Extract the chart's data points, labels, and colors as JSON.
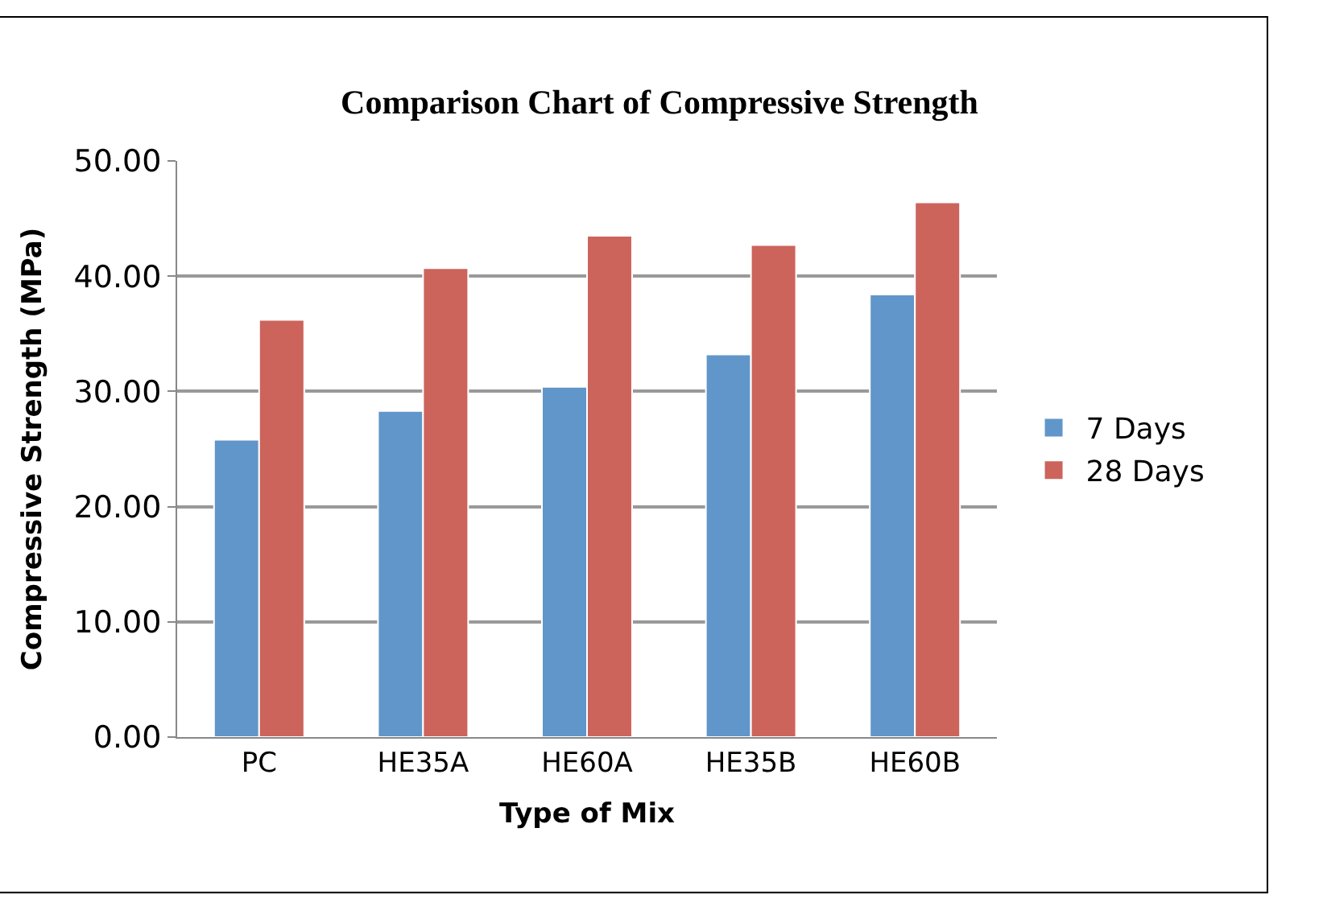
{
  "chart_data": {
    "type": "bar",
    "title": "Comparison Chart of Compressive Strength",
    "xlabel": "Type of Mix",
    "ylabel": "Compressive Strength (MPa)",
    "categories": [
      "PC",
      "HE35A",
      "HE60A",
      "HE35B",
      "HE60B"
    ],
    "series": [
      {
        "name": "7 Days",
        "color": "#6096c9",
        "values": [
          25.8,
          28.3,
          30.4,
          33.2,
          38.4
        ]
      },
      {
        "name": "28 Days",
        "color": "#cc645c",
        "values": [
          36.2,
          40.7,
          43.5,
          42.7,
          46.4
        ]
      }
    ],
    "ylim": [
      0,
      50
    ],
    "yticks": [
      {
        "value": 0,
        "label": "0.00"
      },
      {
        "value": 10,
        "label": "10.00"
      },
      {
        "value": 20,
        "label": "20.00"
      },
      {
        "value": 30,
        "label": "30.00"
      },
      {
        "value": 40,
        "label": "40.00"
      },
      {
        "value": 50,
        "label": "50.00"
      }
    ],
    "grid": "y",
    "legend": "right"
  }
}
